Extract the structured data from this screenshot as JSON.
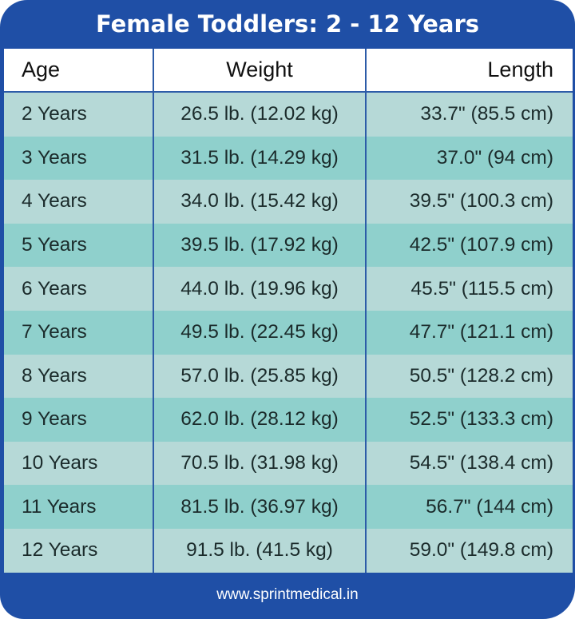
{
  "title": "Female Toddlers: 2 - 12 Years",
  "headers": [
    "Age",
    "Weight",
    "Length"
  ],
  "rows": [
    [
      "2 Years",
      "26.5 lb. (12.02 kg)",
      "33.7\" (85.5 cm)"
    ],
    [
      "3 Years",
      "31.5 lb. (14.29 kg)",
      "37.0\" (94 cm)"
    ],
    [
      "4 Years",
      "34.0 lb. (15.42 kg)",
      "39.5\" (100.3 cm)"
    ],
    [
      "5 Years",
      "39.5 lb. (17.92 kg)",
      "42.5\" (107.9 cm)"
    ],
    [
      "6 Years",
      "44.0 lb. (19.96 kg)",
      "45.5\" (115.5 cm)"
    ],
    [
      "7 Years",
      "49.5 lb. (22.45 kg)",
      "47.7\" (121.1 cm)"
    ],
    [
      "8 Years",
      "57.0 lb. (25.85 kg)",
      "50.5\" (128.2 cm)"
    ],
    [
      "9 Years",
      "62.0 lb. (28.12 kg)",
      "52.5\" (133.3 cm)"
    ],
    [
      "10 Years",
      "70.5 lb. (31.98 kg)",
      "54.5\" (138.4 cm)"
    ],
    [
      "11 Years",
      "81.5 lb. (36.97 kg)",
      "56.7\" (144 cm)"
    ],
    [
      "12 Years",
      "91.5 lb. (41.5 kg)",
      "59.0\" (149.8 cm)"
    ]
  ],
  "footer": "www.sprintmedical.in",
  "colors": {
    "brand": "#1f4fa6",
    "row_light": "#b6d9d7",
    "row_dark": "#8fd0cc"
  }
}
